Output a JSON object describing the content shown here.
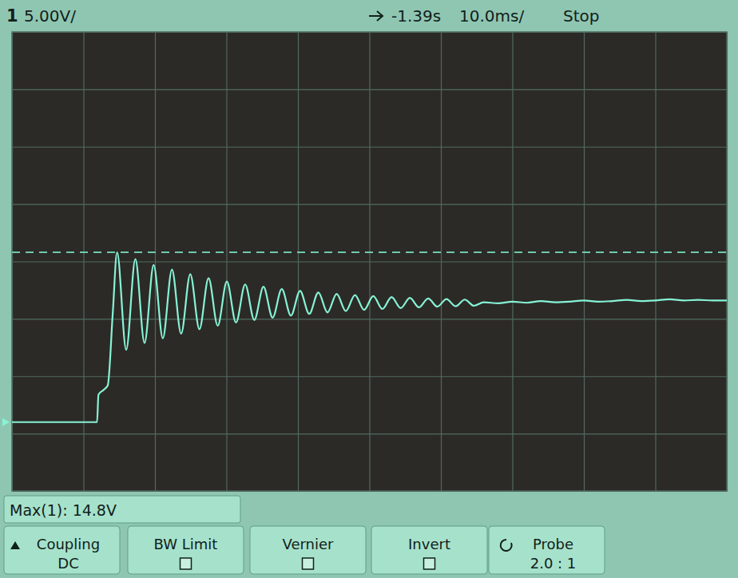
{
  "chart_data": {
    "type": "line",
    "status_bar": {
      "channel": "1",
      "volts_per_div": "5.00V/",
      "delay": "-1.39s",
      "time_per_div": "10.0ms/",
      "run_state": "Stop"
    },
    "measurement": {
      "label": "Max(1): 14.8V",
      "value": 14.8
    },
    "ground_level": 0,
    "softkeys": [
      {
        "label": "Coupling",
        "value": "DC"
      },
      {
        "label": "BW Limit"
      },
      {
        "label": "Vernier"
      },
      {
        "label": "Invert"
      },
      {
        "label": "Probe",
        "value": "2.0 : 1"
      }
    ],
    "color": "#86f3d6",
    "grid": true,
    "tick_labels": false,
    "xlim": [
      -1440,
      -1340
    ],
    "xticks": [
      -1440,
      -1430,
      -1420,
      -1410,
      -1400,
      -1390,
      -1380,
      -1370,
      -1360,
      -1350,
      -1340
    ],
    "ylim": [
      -6,
      34
    ],
    "yticks": [
      -1,
      4,
      9,
      14,
      19,
      24,
      29
    ],
    "x": [
      -1440,
      -1428.1,
      -1427.9,
      -1427.2,
      -1426.6,
      -1425.9,
      -1425.3,
      -1424.02,
      -1422.74,
      -1421.46,
      -1420.18,
      -1418.9,
      -1417.62,
      -1416.34,
      -1415.06,
      -1413.78,
      -1412.5,
      -1411.22,
      -1409.94,
      -1408.66,
      -1407.38,
      -1406.1,
      -1404.82,
      -1403.54,
      -1402.26,
      -1400.98,
      -1399.7,
      -1398.42,
      -1397.14,
      -1395.86,
      -1394.58,
      -1393.3,
      -1392.02,
      -1390.74,
      -1389.46,
      -1388.18,
      -1386.9,
      -1385.62,
      -1384.34,
      -1383.06,
      -1381.78,
      -1380.5,
      -1379.22,
      -1377.94,
      -1376.66,
      -1375.38,
      -1374,
      -1372,
      -1370,
      -1368,
      -1366,
      -1364,
      -1362,
      -1360,
      -1358,
      -1356,
      -1354,
      -1352,
      -1350,
      -1348,
      -1346,
      -1344,
      -1342,
      -1340
    ],
    "values": [
      0,
      0,
      2.4,
      2.8,
      3.2,
      9.5,
      14.8,
      6.3,
      14.2,
      6.9,
      13.7,
      7.3,
      13.3,
      7.7,
      12.9,
      8.1,
      12.55,
      8.4,
      12.25,
      8.68,
      12.0,
      8.9,
      11.8,
      9.1,
      11.6,
      9.28,
      11.44,
      9.43,
      11.3,
      9.56,
      11.18,
      9.68,
      11.07,
      9.78,
      10.98,
      9.86,
      10.9,
      9.94,
      10.83,
      10.0,
      10.77,
      10.06,
      10.72,
      10.1,
      10.68,
      10.14,
      10.45,
      10.35,
      10.5,
      10.4,
      10.55,
      10.45,
      10.5,
      10.6,
      10.5,
      10.55,
      10.65,
      10.55,
      10.6,
      10.7,
      10.6,
      10.65,
      10.6,
      10.6
    ]
  }
}
